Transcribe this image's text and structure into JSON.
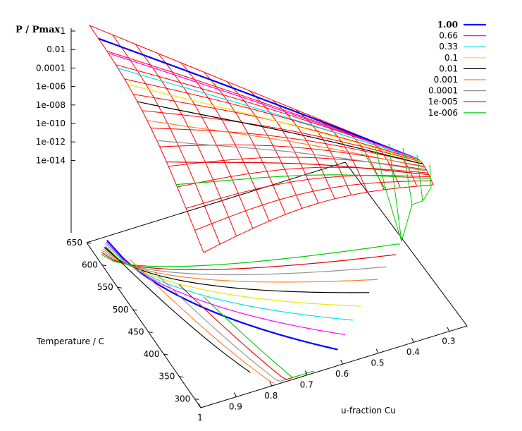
{
  "chart_data": {
    "type": "surface3d",
    "zlabel": "P / Pmax",
    "xlabel": "u-fraction Cu",
    "ylabel": "Temperature / C",
    "z_ticks": [
      "1",
      "0.01",
      "0.0001",
      "1e-006",
      "1e-008",
      "1e-010",
      "1e-012",
      "1e-014"
    ],
    "x_ticks": [
      "1",
      "0.9",
      "0.8",
      "0.7",
      "0.6",
      "0.5",
      "0.4",
      "0.3"
    ],
    "y_ticks": [
      "300",
      "350",
      "400",
      "450",
      "500",
      "550",
      "600",
      "650"
    ],
    "xlim": [
      0.25,
      1.0
    ],
    "ylim": [
      280,
      650
    ],
    "zlim_log10": [
      -16,
      0
    ],
    "grid": false,
    "legend": {
      "position": "top-right",
      "entries": [
        {
          "label": "1.00",
          "color": "#0000ff"
        },
        {
          "label": "0.66",
          "color": "#ff00ff"
        },
        {
          "label": "0.33",
          "color": "#00e5e5"
        },
        {
          "label": "0.1",
          "color": "#e8e800"
        },
        {
          "label": "0.01",
          "color": "#000000"
        },
        {
          "label": "0.001",
          "color": "#ff7f2a"
        },
        {
          "label": "0.0001",
          "color": "#909090"
        },
        {
          "label": "1e-005",
          "color": "#e00000"
        },
        {
          "label": "1e-006",
          "color": "#00cc00"
        }
      ]
    },
    "surface_color": "#ff0000"
  }
}
